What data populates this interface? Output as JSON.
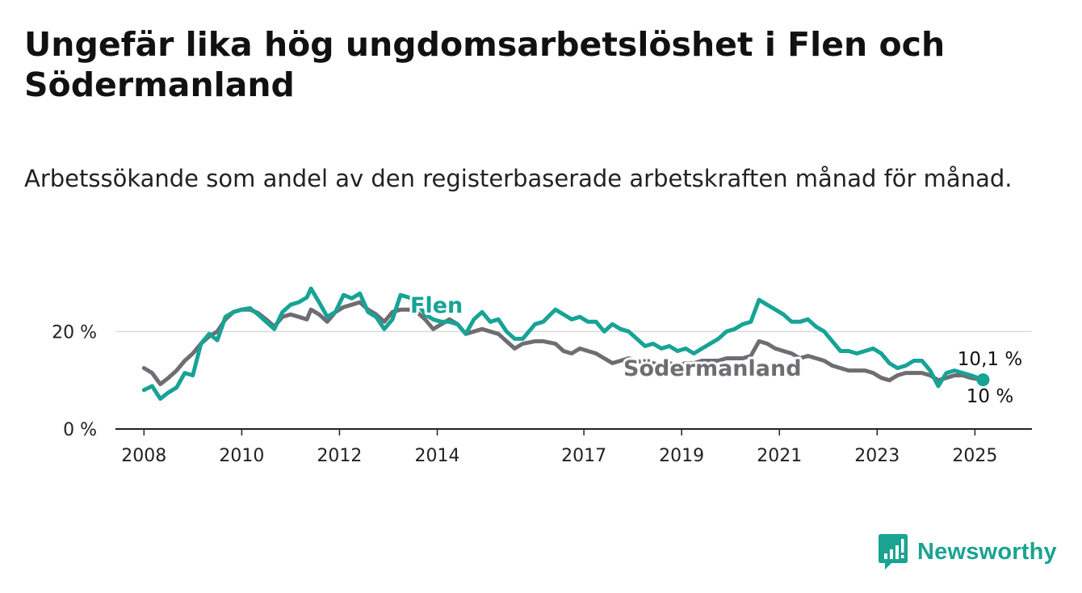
{
  "header": {
    "title": "Ungefär lika hög ungdomsarbetslöshet i Flen och Södermanland",
    "subtitle": "Arbetssökande som andel av den registerbaserade arbetskraften månad för månad."
  },
  "brand": {
    "name": "Newsworthy",
    "icon": "newsworthy-logo-icon",
    "color": "#1aa391"
  },
  "chart_data": {
    "type": "line",
    "title": "",
    "xlabel": "",
    "ylabel": "",
    "x_range": [
      "2007-06",
      "2026-03"
    ],
    "ylim": [
      0,
      30
    ],
    "x_ticks": [
      {
        "label": "2008",
        "year": 2008
      },
      {
        "label": "2010",
        "year": 2010
      },
      {
        "label": "2012",
        "year": 2012
      },
      {
        "label": "2014",
        "year": 2014
      },
      {
        "label": "2017",
        "year": 2017
      },
      {
        "label": "2019",
        "year": 2019
      },
      {
        "label": "2021",
        "year": 2021
      },
      {
        "label": "2023",
        "year": 2023
      },
      {
        "label": "2025",
        "year": 2025
      }
    ],
    "y_ticks": [
      {
        "label": "0 %",
        "value": 0
      },
      {
        "label": "20 %",
        "value": 20
      }
    ],
    "grid": {
      "horizontal": true,
      "vertical": false
    },
    "legend": "inline labels",
    "series": [
      {
        "name": "Flen",
        "color": "#17a396",
        "end_label": "10,1 %",
        "end_value": 10.1,
        "points": [
          [
            "2008-01",
            8.0
          ],
          [
            "2008-03",
            8.8
          ],
          [
            "2008-05",
            6.2
          ],
          [
            "2008-07",
            7.5
          ],
          [
            "2008-09",
            8.5
          ],
          [
            "2008-11",
            11.5
          ],
          [
            "2009-01",
            11.0
          ],
          [
            "2009-03",
            17.5
          ],
          [
            "2009-05",
            19.5
          ],
          [
            "2009-07",
            18.2
          ],
          [
            "2009-09",
            23.0
          ],
          [
            "2009-11",
            24.0
          ],
          [
            "2010-01",
            24.5
          ],
          [
            "2010-03",
            24.8
          ],
          [
            "2010-05",
            23.5
          ],
          [
            "2010-07",
            22.0
          ],
          [
            "2010-09",
            20.5
          ],
          [
            "2010-11",
            24.0
          ],
          [
            "2011-01",
            25.5
          ],
          [
            "2011-03",
            26.0
          ],
          [
            "2011-05",
            27.0
          ],
          [
            "2011-06",
            28.8
          ],
          [
            "2011-08",
            26.0
          ],
          [
            "2011-10",
            23.0
          ],
          [
            "2011-12",
            24.0
          ],
          [
            "2012-02",
            27.5
          ],
          [
            "2012-04",
            26.8
          ],
          [
            "2012-06",
            27.8
          ],
          [
            "2012-08",
            24.0
          ],
          [
            "2012-10",
            23.0
          ],
          [
            "2012-12",
            20.5
          ],
          [
            "2013-02",
            22.5
          ],
          [
            "2013-04",
            27.5
          ],
          [
            "2013-06",
            27.0
          ],
          [
            "2013-08",
            26.0
          ],
          [
            "2013-10",
            23.5
          ],
          [
            "2013-12",
            22.5
          ],
          [
            "2014-02",
            22.0
          ],
          [
            "2014-04",
            22.0
          ],
          [
            "2014-06",
            21.5
          ],
          [
            "2014-08",
            19.5
          ],
          [
            "2014-10",
            22.5
          ],
          [
            "2014-12",
            24.0
          ],
          [
            "2015-02",
            22.0
          ],
          [
            "2015-04",
            22.5
          ],
          [
            "2015-06",
            20.0
          ],
          [
            "2015-08",
            18.5
          ],
          [
            "2015-10",
            18.5
          ],
          [
            "2016-01",
            21.5
          ],
          [
            "2016-03",
            22.0
          ],
          [
            "2016-06",
            24.5
          ],
          [
            "2016-08",
            23.5
          ],
          [
            "2016-10",
            22.5
          ],
          [
            "2016-12",
            23.0
          ],
          [
            "2017-02",
            22.0
          ],
          [
            "2017-04",
            22.0
          ],
          [
            "2017-06",
            20.0
          ],
          [
            "2017-08",
            21.5
          ],
          [
            "2017-10",
            20.5
          ],
          [
            "2017-12",
            20.0
          ],
          [
            "2018-02",
            18.5
          ],
          [
            "2018-04",
            17.0
          ],
          [
            "2018-06",
            17.5
          ],
          [
            "2018-08",
            16.5
          ],
          [
            "2018-10",
            17.0
          ],
          [
            "2018-12",
            16.0
          ],
          [
            "2019-02",
            16.5
          ],
          [
            "2019-04",
            15.5
          ],
          [
            "2019-06",
            16.5
          ],
          [
            "2019-08",
            17.5
          ],
          [
            "2019-10",
            18.5
          ],
          [
            "2019-12",
            20.0
          ],
          [
            "2020-02",
            20.5
          ],
          [
            "2020-04",
            21.5
          ],
          [
            "2020-06",
            22.0
          ],
          [
            "2020-08",
            26.5
          ],
          [
            "2020-10",
            25.5
          ],
          [
            "2020-12",
            24.5
          ],
          [
            "2021-02",
            23.5
          ],
          [
            "2021-04",
            22.0
          ],
          [
            "2021-06",
            22.0
          ],
          [
            "2021-08",
            22.5
          ],
          [
            "2021-10",
            21.0
          ],
          [
            "2021-12",
            20.0
          ],
          [
            "2022-02",
            18.0
          ],
          [
            "2022-04",
            16.0
          ],
          [
            "2022-06",
            16.0
          ],
          [
            "2022-08",
            15.5
          ],
          [
            "2022-10",
            16.0
          ],
          [
            "2022-12",
            16.5
          ],
          [
            "2023-02",
            15.5
          ],
          [
            "2023-04",
            13.5
          ],
          [
            "2023-06",
            12.5
          ],
          [
            "2023-08",
            13.0
          ],
          [
            "2023-10",
            14.0
          ],
          [
            "2023-12",
            14.0
          ],
          [
            "2024-02",
            12.0
          ],
          [
            "2024-04",
            8.8
          ],
          [
            "2024-06",
            11.5
          ],
          [
            "2024-08",
            12.0
          ],
          [
            "2024-10",
            11.5
          ],
          [
            "2024-12",
            11.0
          ],
          [
            "2025-03",
            10.1
          ]
        ]
      },
      {
        "name": "Södermanland",
        "color": "#6e6d72",
        "end_label": "10 %",
        "end_value": 10.0,
        "points": [
          [
            "2008-01",
            12.5
          ],
          [
            "2008-03",
            11.5
          ],
          [
            "2008-05",
            9.2
          ],
          [
            "2008-07",
            10.5
          ],
          [
            "2008-09",
            12.0
          ],
          [
            "2008-11",
            14.0
          ],
          [
            "2009-01",
            15.5
          ],
          [
            "2009-03",
            17.5
          ],
          [
            "2009-05",
            19.0
          ],
          [
            "2009-07",
            20.0
          ],
          [
            "2009-09",
            22.5
          ],
          [
            "2009-11",
            24.0
          ],
          [
            "2010-01",
            24.5
          ],
          [
            "2010-03",
            24.5
          ],
          [
            "2010-05",
            23.8
          ],
          [
            "2010-07",
            22.5
          ],
          [
            "2010-09",
            21.0
          ],
          [
            "2010-11",
            23.0
          ],
          [
            "2011-01",
            23.5
          ],
          [
            "2011-03",
            23.0
          ],
          [
            "2011-05",
            22.5
          ],
          [
            "2011-06",
            24.5
          ],
          [
            "2011-08",
            23.5
          ],
          [
            "2011-10",
            22.0
          ],
          [
            "2011-12",
            24.0
          ],
          [
            "2012-02",
            25.0
          ],
          [
            "2012-04",
            25.5
          ],
          [
            "2012-06",
            26.0
          ],
          [
            "2012-08",
            24.5
          ],
          [
            "2012-10",
            23.5
          ],
          [
            "2012-12",
            22.0
          ],
          [
            "2013-02",
            24.0
          ],
          [
            "2013-04",
            24.5
          ],
          [
            "2013-06",
            24.5
          ],
          [
            "2013-08",
            24.0
          ],
          [
            "2013-10",
            22.5
          ],
          [
            "2013-12",
            20.5
          ],
          [
            "2014-02",
            21.5
          ],
          [
            "2014-04",
            22.5
          ],
          [
            "2014-06",
            21.5
          ],
          [
            "2014-08",
            19.5
          ],
          [
            "2014-10",
            20.0
          ],
          [
            "2014-12",
            20.5
          ],
          [
            "2015-02",
            20.0
          ],
          [
            "2015-04",
            19.5
          ],
          [
            "2015-06",
            18.0
          ],
          [
            "2015-08",
            16.5
          ],
          [
            "2015-10",
            17.5
          ],
          [
            "2016-01",
            18.0
          ],
          [
            "2016-03",
            18.0
          ],
          [
            "2016-06",
            17.5
          ],
          [
            "2016-08",
            16.0
          ],
          [
            "2016-10",
            15.5
          ],
          [
            "2016-12",
            16.5
          ],
          [
            "2017-02",
            16.0
          ],
          [
            "2017-04",
            15.5
          ],
          [
            "2017-06",
            14.5
          ],
          [
            "2017-08",
            13.5
          ],
          [
            "2017-10",
            14.0
          ],
          [
            "2017-12",
            14.5
          ],
          [
            "2018-02",
            14.0
          ],
          [
            "2018-04",
            13.5
          ],
          [
            "2018-06",
            13.5
          ],
          [
            "2018-08",
            13.0
          ],
          [
            "2018-10",
            13.5
          ],
          [
            "2018-12",
            13.0
          ],
          [
            "2019-02",
            13.5
          ],
          [
            "2019-04",
            13.5
          ],
          [
            "2019-06",
            14.0
          ],
          [
            "2019-08",
            14.0
          ],
          [
            "2019-10",
            14.0
          ],
          [
            "2019-12",
            14.5
          ],
          [
            "2020-02",
            14.5
          ],
          [
            "2020-04",
            14.5
          ],
          [
            "2020-06",
            15.0
          ],
          [
            "2020-08",
            18.0
          ],
          [
            "2020-10",
            17.5
          ],
          [
            "2020-12",
            16.5
          ],
          [
            "2021-02",
            16.0
          ],
          [
            "2021-04",
            15.5
          ],
          [
            "2021-06",
            14.5
          ],
          [
            "2021-08",
            15.0
          ],
          [
            "2021-10",
            14.5
          ],
          [
            "2021-12",
            14.0
          ],
          [
            "2022-02",
            13.0
          ],
          [
            "2022-04",
            12.5
          ],
          [
            "2022-06",
            12.0
          ],
          [
            "2022-08",
            12.0
          ],
          [
            "2022-10",
            12.0
          ],
          [
            "2022-12",
            11.5
          ],
          [
            "2023-02",
            10.5
          ],
          [
            "2023-04",
            10.0
          ],
          [
            "2023-06",
            11.0
          ],
          [
            "2023-08",
            11.5
          ],
          [
            "2023-10",
            11.5
          ],
          [
            "2023-12",
            11.5
          ],
          [
            "2024-02",
            11.0
          ],
          [
            "2024-04",
            10.0
          ],
          [
            "2024-06",
            10.5
          ],
          [
            "2024-08",
            11.0
          ],
          [
            "2024-10",
            11.0
          ],
          [
            "2024-12",
            10.5
          ],
          [
            "2025-03",
            10.0
          ]
        ]
      }
    ]
  }
}
